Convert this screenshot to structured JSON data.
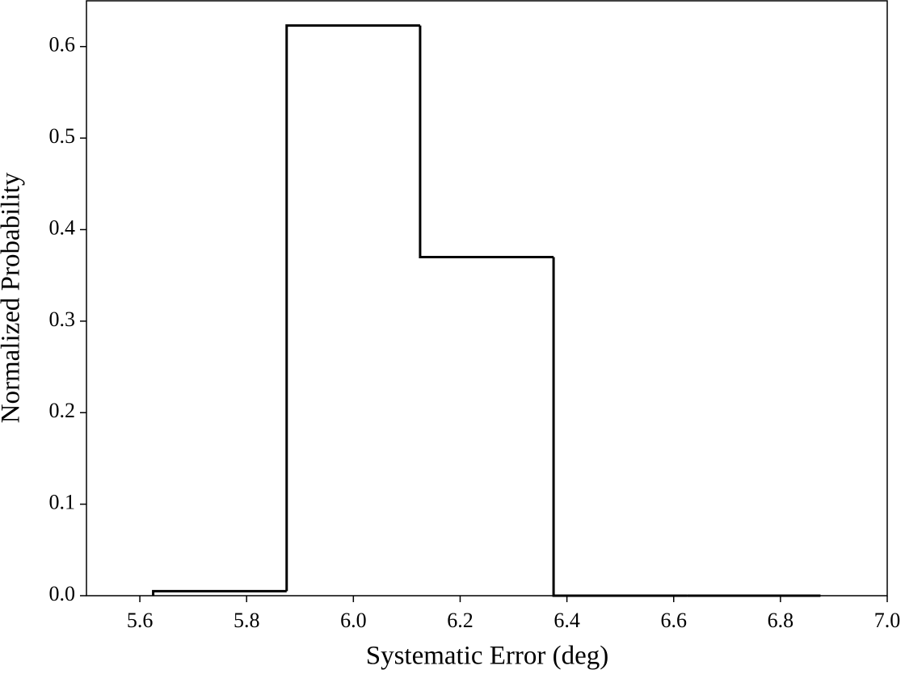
{
  "chart_data": {
    "type": "histogram",
    "xlabel": "Systematic Error (deg)",
    "ylabel": "Normalized Probability",
    "bins": [
      5.625,
      5.875,
      6.125,
      6.375,
      6.625,
      6.875
    ],
    "counts": [
      0.005,
      0.623,
      0.37,
      0,
      0
    ],
    "color": "#000000",
    "histtype": "step",
    "xlim": [
      5.5,
      7.0
    ],
    "xticks": [
      5.6,
      5.8,
      {
        "value": 6,
        "label": "6.0"
      },
      6.2,
      6.4,
      6.6,
      6.8,
      {
        "value": 7,
        "label": "7.0"
      }
    ],
    "ylim": [
      0,
      0.65
    ],
    "yticks": [
      {
        "value": 0,
        "label": "0.0"
      },
      0.1,
      0.2,
      0.3,
      0.4,
      0.5,
      0.6
    ],
    "grid": false
  }
}
